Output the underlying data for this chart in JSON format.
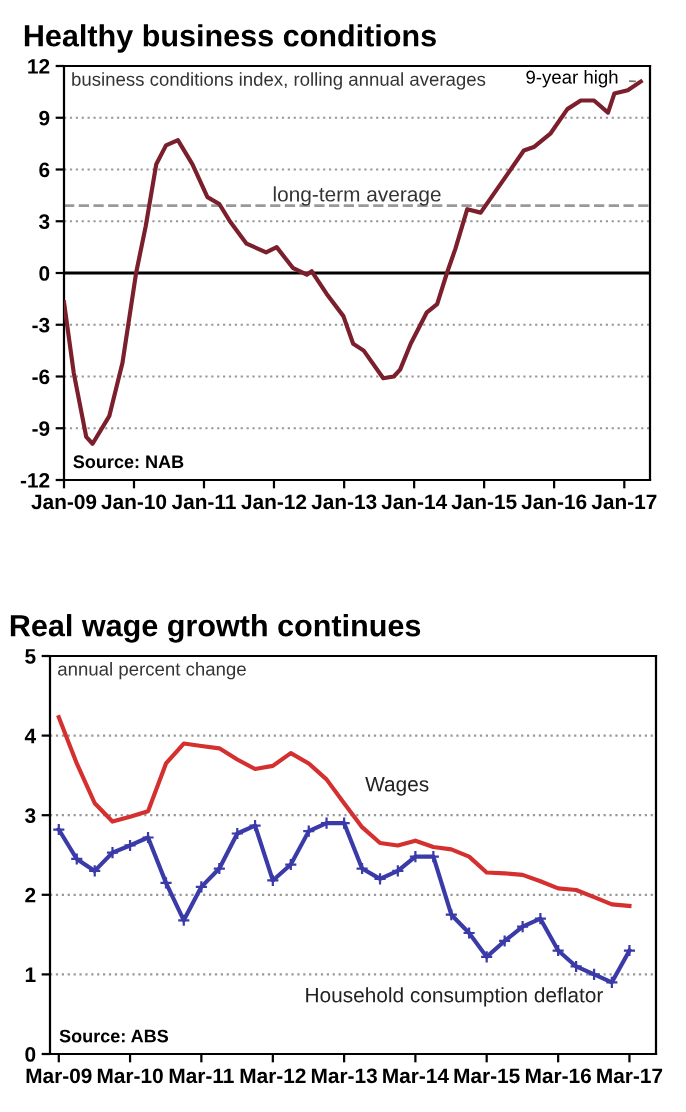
{
  "chart_data": [
    {
      "type": "line",
      "title": "Healthy business conditions",
      "subtitle": "business conditions index, rolling annual averages",
      "x": [
        "2009-01-01",
        "2009-02-21",
        "2009-04-27",
        "2009-05-30",
        "2009-08-25",
        "2009-11-02",
        "2010-01-12",
        "2010-03-03",
        "2010-04-27",
        "2010-06-17",
        "2010-08-18",
        "2010-11-02",
        "2011-01-19",
        "2011-03-22",
        "2011-05-16",
        "2011-08-11",
        "2011-11-21",
        "2012-01-15",
        "2012-04-08",
        "2012-06-20",
        "2012-07-16",
        "2012-10-01",
        "2012-12-28",
        "2013-02-17",
        "2013-04-13",
        "2013-07-24",
        "2013-09-17",
        "2013-10-20",
        "2013-12-14",
        "2014-03-07",
        "2014-05-01",
        "2014-06-21",
        "2014-08-04",
        "2014-10-05",
        "2014-12-14",
        "2015-02-21",
        "2015-05-01",
        "2015-07-27",
        "2015-09-17",
        "2015-12-14",
        "2016-03-10",
        "2016-05-19",
        "2016-07-27",
        "2016-10-08",
        "2016-11-10",
        "2017-01-19",
        "2017-03-28"
      ],
      "series": [
        {
          "color": "#7a1f2b",
          "values": [
            -1.7,
            -5.8,
            -9.5,
            -9.9,
            -8.3,
            -5.2,
            0.0,
            2.7,
            6.3,
            7.4,
            7.7,
            6.3,
            4.4,
            4.0,
            3.0,
            1.7,
            1.2,
            1.5,
            0.3,
            -0.1,
            0.1,
            -1.2,
            -2.5,
            -4.1,
            -4.5,
            -6.1,
            -6.0,
            -5.6,
            -4.1,
            -2.3,
            -1.8,
            0.0,
            1.4,
            3.7,
            3.5,
            4.6,
            5.7,
            7.1,
            7.3,
            8.1,
            9.5,
            10.0,
            10.0,
            9.3,
            10.4,
            10.6,
            11.1
          ]
        }
      ],
      "xlim": [
        "2009-01-01",
        "2017-05-15"
      ],
      "xticks": [
        {
          "value": "2009-01-01",
          "label": "Jan-09"
        },
        {
          "value": "2010-01-01",
          "label": "Jan-10"
        },
        {
          "value": "2011-01-01",
          "label": "Jan-11"
        },
        {
          "value": "2012-01-01",
          "label": "Jan-12"
        },
        {
          "value": "2013-01-01",
          "label": "Jan-13"
        },
        {
          "value": "2014-01-01",
          "label": "Jan-14"
        },
        {
          "value": "2015-01-01",
          "label": "Jan-15"
        },
        {
          "value": "2016-01-01",
          "label": "Jan-16"
        },
        {
          "value": "2017-01-01",
          "label": "Jan-17"
        }
      ],
      "ylim": [
        -12,
        12
      ],
      "yticks": [
        -12,
        -9,
        -6,
        -3,
        0,
        3,
        6,
        9,
        12
      ],
      "grid": "y",
      "ref_lines": [
        {
          "axis": "y",
          "value": 3.9,
          "label": "long-term average",
          "color": "#999999",
          "line_style": "dashed"
        },
        {
          "axis": "y",
          "value": 0,
          "color": "#000000",
          "line_style": "solid"
        }
      ],
      "annotations": [
        {
          "text": "9-year high",
          "x": "2017-03-28",
          "y": 11.1
        },
        "Source: NAB"
      ]
    },
    {
      "type": "line",
      "title": "Real wage growth continues",
      "subtitle": "annual percent change",
      "x": [
        "2009-03",
        "2009-06",
        "2009-09",
        "2009-12",
        "2010-03",
        "2010-06",
        "2010-09",
        "2010-12",
        "2011-03",
        "2011-06",
        "2011-09",
        "2011-12",
        "2012-03",
        "2012-06",
        "2012-09",
        "2012-12",
        "2013-03",
        "2013-06",
        "2013-09",
        "2013-12",
        "2014-03",
        "2014-06",
        "2014-09",
        "2014-12",
        "2015-03",
        "2015-06",
        "2015-09",
        "2015-12",
        "2016-03",
        "2016-06",
        "2016-09",
        "2016-12",
        "2017-03"
      ],
      "series": [
        {
          "name": "Wages",
          "color": "#d43030",
          "marker": "none",
          "values": [
            4.23,
            3.65,
            3.15,
            2.92,
            2.98,
            3.05,
            3.65,
            3.9,
            3.87,
            3.84,
            3.7,
            3.58,
            3.62,
            3.78,
            3.65,
            3.45,
            3.15,
            2.85,
            2.65,
            2.62,
            2.68,
            2.6,
            2.57,
            2.48,
            2.28,
            2.27,
            2.25,
            2.17,
            2.08,
            2.06,
            1.97,
            1.88,
            1.86
          ]
        },
        {
          "name": "Household consumption deflator",
          "color": "#3a3aa8",
          "marker": "cross",
          "values": [
            2.82,
            2.45,
            2.3,
            2.53,
            2.62,
            2.72,
            2.15,
            1.68,
            2.1,
            2.33,
            2.77,
            2.87,
            2.18,
            2.38,
            2.8,
            2.9,
            2.9,
            2.33,
            2.2,
            2.3,
            2.48,
            2.48,
            1.75,
            1.52,
            1.22,
            1.42,
            1.6,
            1.7,
            1.3,
            1.1,
            1.0,
            0.9,
            1.3
          ]
        }
      ],
      "xlim": [
        "2009-01-15",
        "2017-07-15"
      ],
      "xticks": [
        {
          "value": "2009-03-01",
          "label": "Mar-09"
        },
        {
          "value": "2010-03-01",
          "label": "Mar-10"
        },
        {
          "value": "2011-03-01",
          "label": "Mar-11"
        },
        {
          "value": "2012-03-01",
          "label": "Mar-12"
        },
        {
          "value": "2013-03-01",
          "label": "Mar-13"
        },
        {
          "value": "2014-03-01",
          "label": "Mar-14"
        },
        {
          "value": "2015-03-01",
          "label": "Mar-15"
        },
        {
          "value": "2016-03-01",
          "label": "Mar-16"
        },
        {
          "value": "2017-03-01",
          "label": "Mar-17"
        }
      ],
      "ylim": [
        0,
        5
      ],
      "yticks": [
        0,
        1,
        2,
        3,
        4,
        5
      ],
      "grid": "y",
      "annotations": [
        "Source: ABS"
      ]
    }
  ]
}
